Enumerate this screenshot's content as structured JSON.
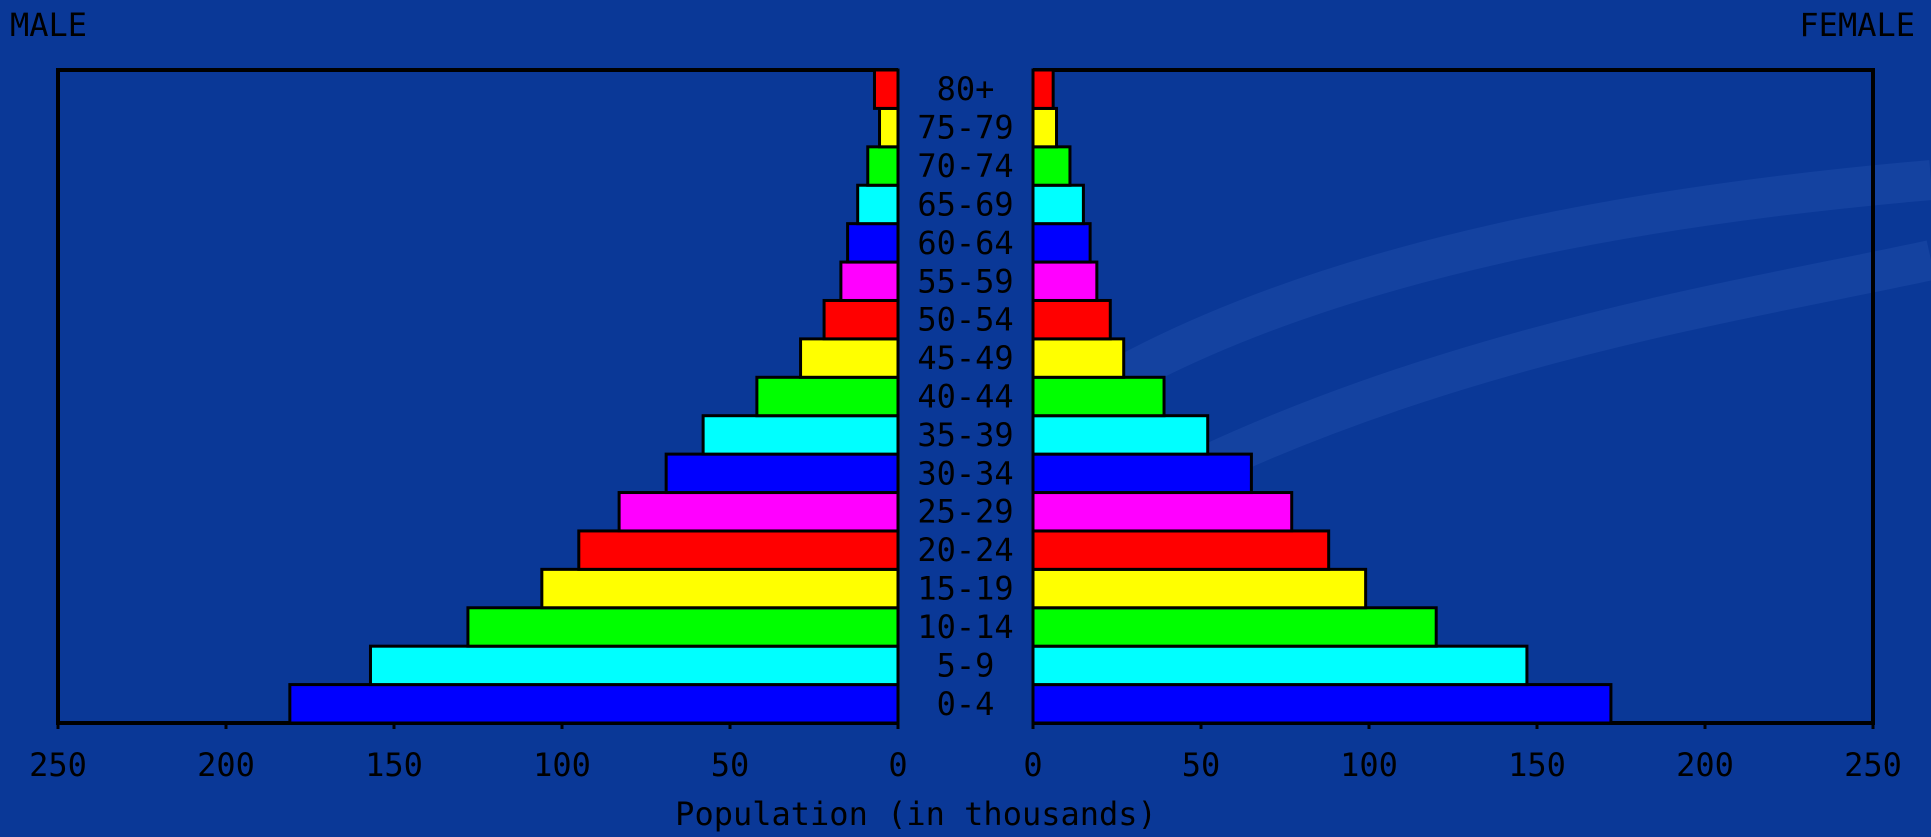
{
  "chart_data": {
    "type": "pyramid",
    "x_label": "Population (in thousands)",
    "categories": [
      "0-4",
      "5-9",
      "10-14",
      "15-19",
      "20-24",
      "25-29",
      "30-34",
      "35-39",
      "40-44",
      "45-49",
      "50-54",
      "55-59",
      "60-64",
      "65-69",
      "70-74",
      "75-79",
      "80+"
    ],
    "colors": [
      "#0000ff",
      "#00ffff",
      "#00ff00",
      "#ffff00",
      "#ff0000",
      "#ff00ff",
      "#0000ff",
      "#00ffff",
      "#00ff00",
      "#ffff00",
      "#ff0000",
      "#ff00ff",
      "#0000ff",
      "#00ffff",
      "#00ff00",
      "#ffff00",
      "#ff0000"
    ],
    "series": [
      {
        "name": "MALE",
        "values": [
          181,
          157,
          128,
          106,
          95,
          83,
          69,
          58,
          42,
          29,
          22,
          17,
          15,
          12,
          9,
          5.5,
          7
        ]
      },
      {
        "name": "FEMALE",
        "values": [
          172,
          147,
          120,
          99,
          88,
          77,
          65,
          52,
          39,
          27,
          23,
          19,
          17,
          15,
          11,
          7,
          6
        ]
      }
    ],
    "xlim": [
      0,
      250
    ],
    "xticks": [
      0,
      50,
      100,
      150,
      200,
      250
    ],
    "grid": false
  }
}
